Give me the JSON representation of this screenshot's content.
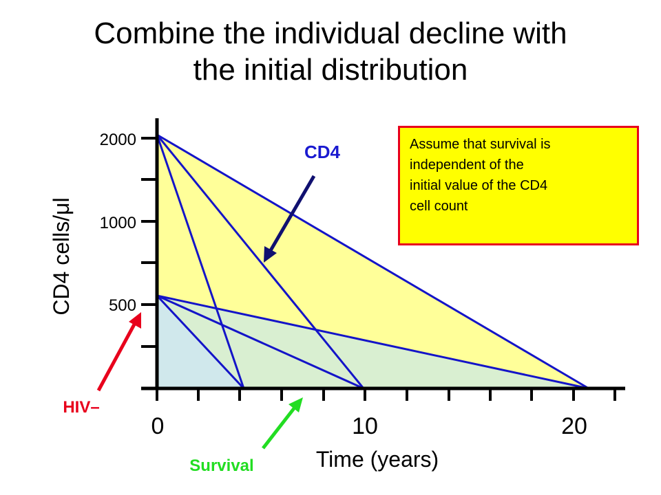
{
  "title_lines": [
    "Combine the individual decline with",
    "the initial distribution"
  ],
  "y_axis": {
    "label": "CD4 cells/μl",
    "ticks": [
      "2000",
      "1000",
      "500"
    ]
  },
  "x_axis": {
    "label": "Time (years)",
    "ticks": [
      "0",
      "10",
      "20"
    ]
  },
  "note_lines": [
    "Assume that survival is",
    "independent of the",
    "initial value of the CD4",
    "cell count"
  ],
  "arrows": {
    "cd4": "CD4",
    "hiv_neg": "HIV–",
    "survival": "Survival"
  },
  "colors": {
    "line_blue": "#1414c8",
    "arrow_navy": "#101070",
    "outer_fill": "#ffff99",
    "inner_fill": "#d4ecd8",
    "note_bg": "#ffff00",
    "note_border": "#e8001c",
    "hiv_red": "#e8001c",
    "survival_green": "#22dd22",
    "cd4_label": "#1a1ad0"
  }
}
